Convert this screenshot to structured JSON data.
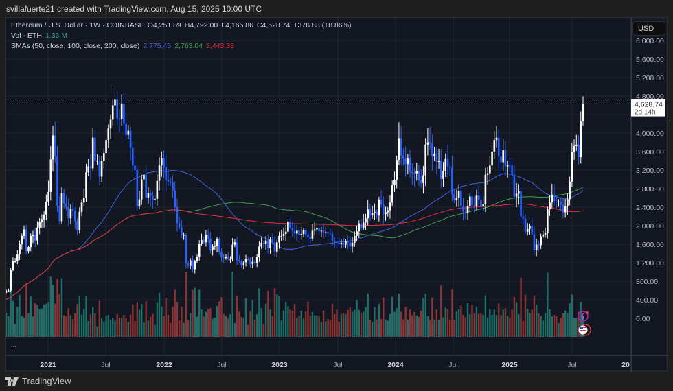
{
  "credit": "svillafuerte21 created with TradingView.com, Aug 15, 2025 10:00 UTC",
  "legend": {
    "symbol": "Ethereum / U.S. Dollar · 1W · COINBASE",
    "open": "O4,251.89",
    "high": "H4,792.00",
    "low": "L4,165.86",
    "close": "C4,628.74",
    "change": "+376.83 (+8.86%)",
    "vol_label": "Vol · ETH",
    "vol_value": "1.33 M",
    "sma_label": "SMAs (50, close, 100, close, 200, close)",
    "sma50": "2,775.45",
    "sma100": "2,763.04",
    "sma200": "2,443.38"
  },
  "currency_button": "USD",
  "more_label": "...",
  "brand": "TradingView",
  "price_label": {
    "value": "4,628.74",
    "countdown": "2d 14h"
  },
  "colors": {
    "up": "#ffffff",
    "down": "#2962ff",
    "vol_up": "#1f6f69",
    "vol_down": "#8a3434",
    "sma50": "#3f66e0",
    "sma100": "#3fa34d",
    "sma200": "#e0303f",
    "background": "#131722"
  },
  "chart_data": {
    "type": "candlestick",
    "interval": "1W",
    "start_week": "2020-08",
    "closes": [
      390,
      430,
      400,
      385,
      350,
      340,
      355,
      345,
      365,
      375,
      410,
      390,
      380,
      450,
      460,
      520,
      560,
      590,
      600,
      1040,
      1230,
      1230,
      1380,
      1600,
      1780,
      1920,
      1450,
      1540,
      1780,
      1800,
      1680,
      1960,
      2080,
      2140,
      2240,
      2520,
      2730,
      3430,
      3950,
      3500,
      2430,
      2100,
      2700,
      2480,
      2400,
      2160,
      2370,
      2320,
      2100,
      1900,
      2300,
      2500,
      2600,
      3150,
      3280,
      3240,
      3900,
      3400,
      3400,
      3060,
      3400,
      3570,
      3850,
      4100,
      4290,
      4600,
      4720,
      4310,
      4300,
      4640,
      4200,
      3960,
      4050,
      3680,
      3300,
      3200,
      2420,
      2570,
      3000,
      3100,
      2610,
      2700,
      2640,
      2560,
      2580,
      2970,
      3300,
      3450,
      3270,
      2990,
      2950,
      2930,
      2760,
      2400,
      2050,
      1960,
      1790,
      1800,
      1180,
      1130,
      1250,
      1060,
      1230,
      1330,
      1600,
      1690,
      1640,
      1800,
      1720,
      1480,
      1550,
      1560,
      1720,
      1430,
      1320,
      1300,
      1320,
      1280,
      1280,
      1590,
      1640,
      1250,
      1230,
      1150,
      1210,
      1280,
      1270,
      1170,
      1220,
      1200,
      1320,
      1550,
      1630,
      1600,
      1680,
      1510,
      1700,
      1640,
      1440,
      1640,
      1780,
      1780,
      1820,
      1870,
      2090,
      1940,
      1890,
      1830,
      1890,
      1800,
      1820,
      1910,
      1800,
      1750,
      1720,
      1890,
      1920,
      1950,
      1880,
      1890,
      1860,
      1860,
      1830,
      1820,
      1670,
      1650,
      1630,
      1620,
      1630,
      1590,
      1670,
      1640,
      1550,
      1630,
      1780,
      1880,
      2050,
      1950,
      2070,
      2160,
      2350,
      2220,
      2270,
      2300,
      2220,
      2560,
      2460,
      2250,
      2290,
      2330,
      2500,
      2880,
      2990,
      3420,
      3890,
      3520,
      3450,
      3330,
      3450,
      3160,
      3140,
      3130,
      3180,
      2980,
      2920,
      3090,
      3750,
      3800,
      3780,
      3500,
      3560,
      3380,
      3400,
      3010,
      3180,
      3440,
      3280,
      3250,
      2680,
      2550,
      2610,
      2750,
      2430,
      2300,
      2280,
      2420,
      2630,
      2440,
      2420,
      2650,
      2560,
      2430,
      2460,
      3100,
      3130,
      3300,
      3600,
      3850,
      3900,
      3500,
      3370,
      3630,
      3280,
      3310,
      3300,
      3100,
      2630,
      2690,
      2740,
      2200,
      2150,
      1870,
      1930,
      2000,
      1820,
      1470,
      1590,
      1580,
      1770,
      1810,
      1840,
      2360,
      2500,
      2670,
      2530,
      2510,
      2520,
      2450,
      2290,
      2420,
      2570,
      2950,
      3590,
      3720,
      3750,
      3480,
      4250,
      4628.74
    ],
    "last_candle": {
      "open": 4251.89,
      "high": 4792.0,
      "low": 4165.86,
      "close": 4628.74
    },
    "sma_periods": [
      50,
      100,
      200
    ],
    "y_ticks": [
      "6,000.00",
      "5,600.00",
      "5,200.00",
      "4,800.00",
      "4,400.00",
      "4,000.00",
      "3,600.00",
      "3,200.00",
      "2,800.00",
      "2,400.00",
      "2,000.00",
      "1,600.00",
      "1,200.00",
      "800.00",
      "400.00",
      "0.00"
    ],
    "y_tick_values": [
      6000,
      5600,
      5200,
      4800,
      4400,
      4000,
      3600,
      3200,
      2800,
      2400,
      2000,
      1600,
      1200,
      800,
      400,
      0
    ],
    "x_ticks": [
      "2021",
      "Jul",
      "2022",
      "Jul",
      "2023",
      "Jul",
      "2024",
      "Jul",
      "2025",
      "Jul",
      "20"
    ],
    "ylim": [
      0,
      6000
    ],
    "grid": true
  }
}
